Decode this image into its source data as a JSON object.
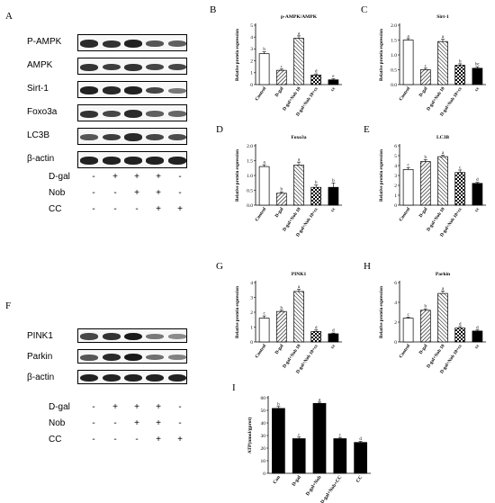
{
  "panel_letters": {
    "A": "A",
    "B": "B",
    "C": "C",
    "D": "D",
    "E": "E",
    "F": "F",
    "G": "G",
    "H": "H",
    "I": "I"
  },
  "blotA": {
    "labels": [
      "P-AMPK",
      "AMPK",
      "Sirt-1",
      "Foxo3a",
      "LC3B",
      "β-actin"
    ],
    "intensity": [
      [
        0.85,
        0.8,
        0.9,
        0.6,
        0.55
      ],
      [
        0.8,
        0.75,
        0.8,
        0.7,
        0.7
      ],
      [
        0.9,
        0.85,
        0.9,
        0.7,
        0.4
      ],
      [
        0.8,
        0.7,
        0.85,
        0.55,
        0.5
      ],
      [
        0.6,
        0.75,
        0.85,
        0.7,
        0.65
      ],
      [
        0.9,
        0.9,
        0.9,
        0.9,
        0.9
      ]
    ],
    "treatments": [
      {
        "name": "D-gal",
        "signs": [
          "-",
          "+",
          "+",
          "+",
          "-"
        ]
      },
      {
        "name": "Nob",
        "signs": [
          "-",
          "-",
          "+",
          "+",
          "-"
        ]
      },
      {
        "name": "CC",
        "signs": [
          "-",
          "-",
          "-",
          "+",
          "+"
        ]
      }
    ]
  },
  "blotF": {
    "labels": [
      "PINK1",
      "Parkin",
      "β-actin"
    ],
    "intensity": [
      [
        0.7,
        0.8,
        0.95,
        0.4,
        0.3
      ],
      [
        0.6,
        0.85,
        0.95,
        0.45,
        0.35
      ],
      [
        0.9,
        0.9,
        0.9,
        0.9,
        0.9
      ]
    ],
    "treatments": [
      {
        "name": "D-gal",
        "signs": [
          "-",
          "+",
          "+",
          "+",
          "-"
        ]
      },
      {
        "name": "Nob",
        "signs": [
          "-",
          "-",
          "+",
          "+",
          "-"
        ]
      },
      {
        "name": "CC",
        "signs": [
          "-",
          "-",
          "-",
          "+",
          "+"
        ]
      }
    ]
  },
  "chart_data": [
    {
      "id": "B",
      "type": "bar",
      "title": "p-AMPK/AMPK",
      "ylabel": "Relative protein expression",
      "categories": [
        "Control",
        "D-gal",
        "D-gal+Nob 10",
        "D-gal+Nob 10+cc",
        "cc"
      ],
      "values": [
        2.6,
        1.2,
        3.9,
        0.8,
        0.4
      ],
      "errors": [
        0.15,
        0.1,
        0.2,
        0.1,
        0.08
      ],
      "letters": [
        "b",
        "c",
        "a",
        "d",
        "e"
      ],
      "ylim": [
        0,
        5
      ],
      "yticks": [
        0,
        1,
        2,
        3,
        4,
        5
      ]
    },
    {
      "id": "C",
      "type": "bar",
      "title": "Sirt-1",
      "ylabel": "Relative protein expression",
      "categories": [
        "Control",
        "D-gal",
        "D-gal+Nob 10",
        "D-gal+Nob 10+cc",
        "cc"
      ],
      "values": [
        1.5,
        0.5,
        1.45,
        0.65,
        0.55
      ],
      "errors": [
        0.05,
        0.05,
        0.08,
        0.05,
        0.05
      ],
      "letters": [
        "a",
        "c",
        "a",
        "b",
        "bc"
      ],
      "ylim": [
        0,
        2.0
      ],
      "yticks": [
        0.0,
        0.5,
        1.0,
        1.5,
        2.0
      ]
    },
    {
      "id": "D",
      "type": "bar",
      "title": "Foxo3a",
      "ylabel": "Relative protein expression",
      "categories": [
        "Control",
        "D-gal",
        "D-gal+Nob 10",
        "D-gal+Nob 10+cc",
        "cc"
      ],
      "values": [
        1.3,
        0.4,
        1.35,
        0.6,
        0.6
      ],
      "errors": [
        0.06,
        0.05,
        0.1,
        0.08,
        0.15
      ],
      "letters": [
        "a",
        "b",
        "a",
        "b",
        "b"
      ],
      "ylim": [
        0,
        2.0
      ],
      "yticks": [
        0.0,
        0.5,
        1.0,
        1.5,
        2.0
      ]
    },
    {
      "id": "E",
      "type": "bar",
      "title": "LC3B",
      "ylabel": "Relative protein expression",
      "categories": [
        "Control",
        "D-gal",
        "D-gal+Nob 10",
        "D-gal+Nob 10+cc",
        "cc"
      ],
      "values": [
        3.6,
        4.4,
        4.9,
        3.3,
        2.2
      ],
      "errors": [
        0.2,
        0.2,
        0.15,
        0.25,
        0.1
      ],
      "letters": [
        "c",
        "b",
        "a",
        "c",
        "d"
      ],
      "ylim": [
        0,
        6
      ],
      "yticks": [
        0,
        1,
        2,
        3,
        4,
        5,
        6
      ]
    },
    {
      "id": "G",
      "type": "bar",
      "title": "PINK1",
      "ylabel": "Relative protein expression",
      "categories": [
        "Control",
        "D-gal",
        "D-gal+Nob 10",
        "D-gal+Nob 10+cc",
        "cc"
      ],
      "values": [
        1.6,
        2.05,
        3.4,
        0.7,
        0.55
      ],
      "errors": [
        0.15,
        0.08,
        0.15,
        0.1,
        0.05
      ],
      "letters": [
        "c",
        "b",
        "a",
        "d",
        "d"
      ],
      "ylim": [
        0,
        4
      ],
      "yticks": [
        0,
        1,
        2,
        3,
        4
      ]
    },
    {
      "id": "H",
      "type": "bar",
      "title": "Parkin",
      "ylabel": "Relative protein expression",
      "categories": [
        "Control",
        "D-gal",
        "D-gal+Nob 10",
        "D-gal+Nob 10+cc",
        "cc"
      ],
      "values": [
        2.4,
        3.2,
        4.9,
        1.4,
        1.1
      ],
      "errors": [
        0.1,
        0.15,
        0.25,
        0.15,
        0.1
      ],
      "letters": [
        "c",
        "b",
        "a",
        "d",
        "d"
      ],
      "ylim": [
        0,
        6
      ],
      "yticks": [
        0,
        2,
        4,
        6
      ]
    },
    {
      "id": "I",
      "type": "bar",
      "title": "",
      "ylabel": "ATP(nmol/gprot)",
      "categories": [
        "Con",
        "D-gal",
        "D-gal+Nob",
        "D-gal+Nob+CC",
        "CC"
      ],
      "values": [
        51.5,
        27.5,
        55.5,
        27.5,
        24.5
      ],
      "errors": [
        1.5,
        1.2,
        1.0,
        1.0,
        0.8
      ],
      "letters": [
        "b",
        "c",
        "a",
        "c",
        "d"
      ],
      "ylim": [
        0,
        60
      ],
      "yticks": [
        0,
        10,
        20,
        30,
        40,
        50,
        60
      ]
    }
  ],
  "colors": {
    "bar_edge": "#000000",
    "solid": "#000000",
    "hatch": "#000000",
    "fill_white": "#ffffff"
  }
}
